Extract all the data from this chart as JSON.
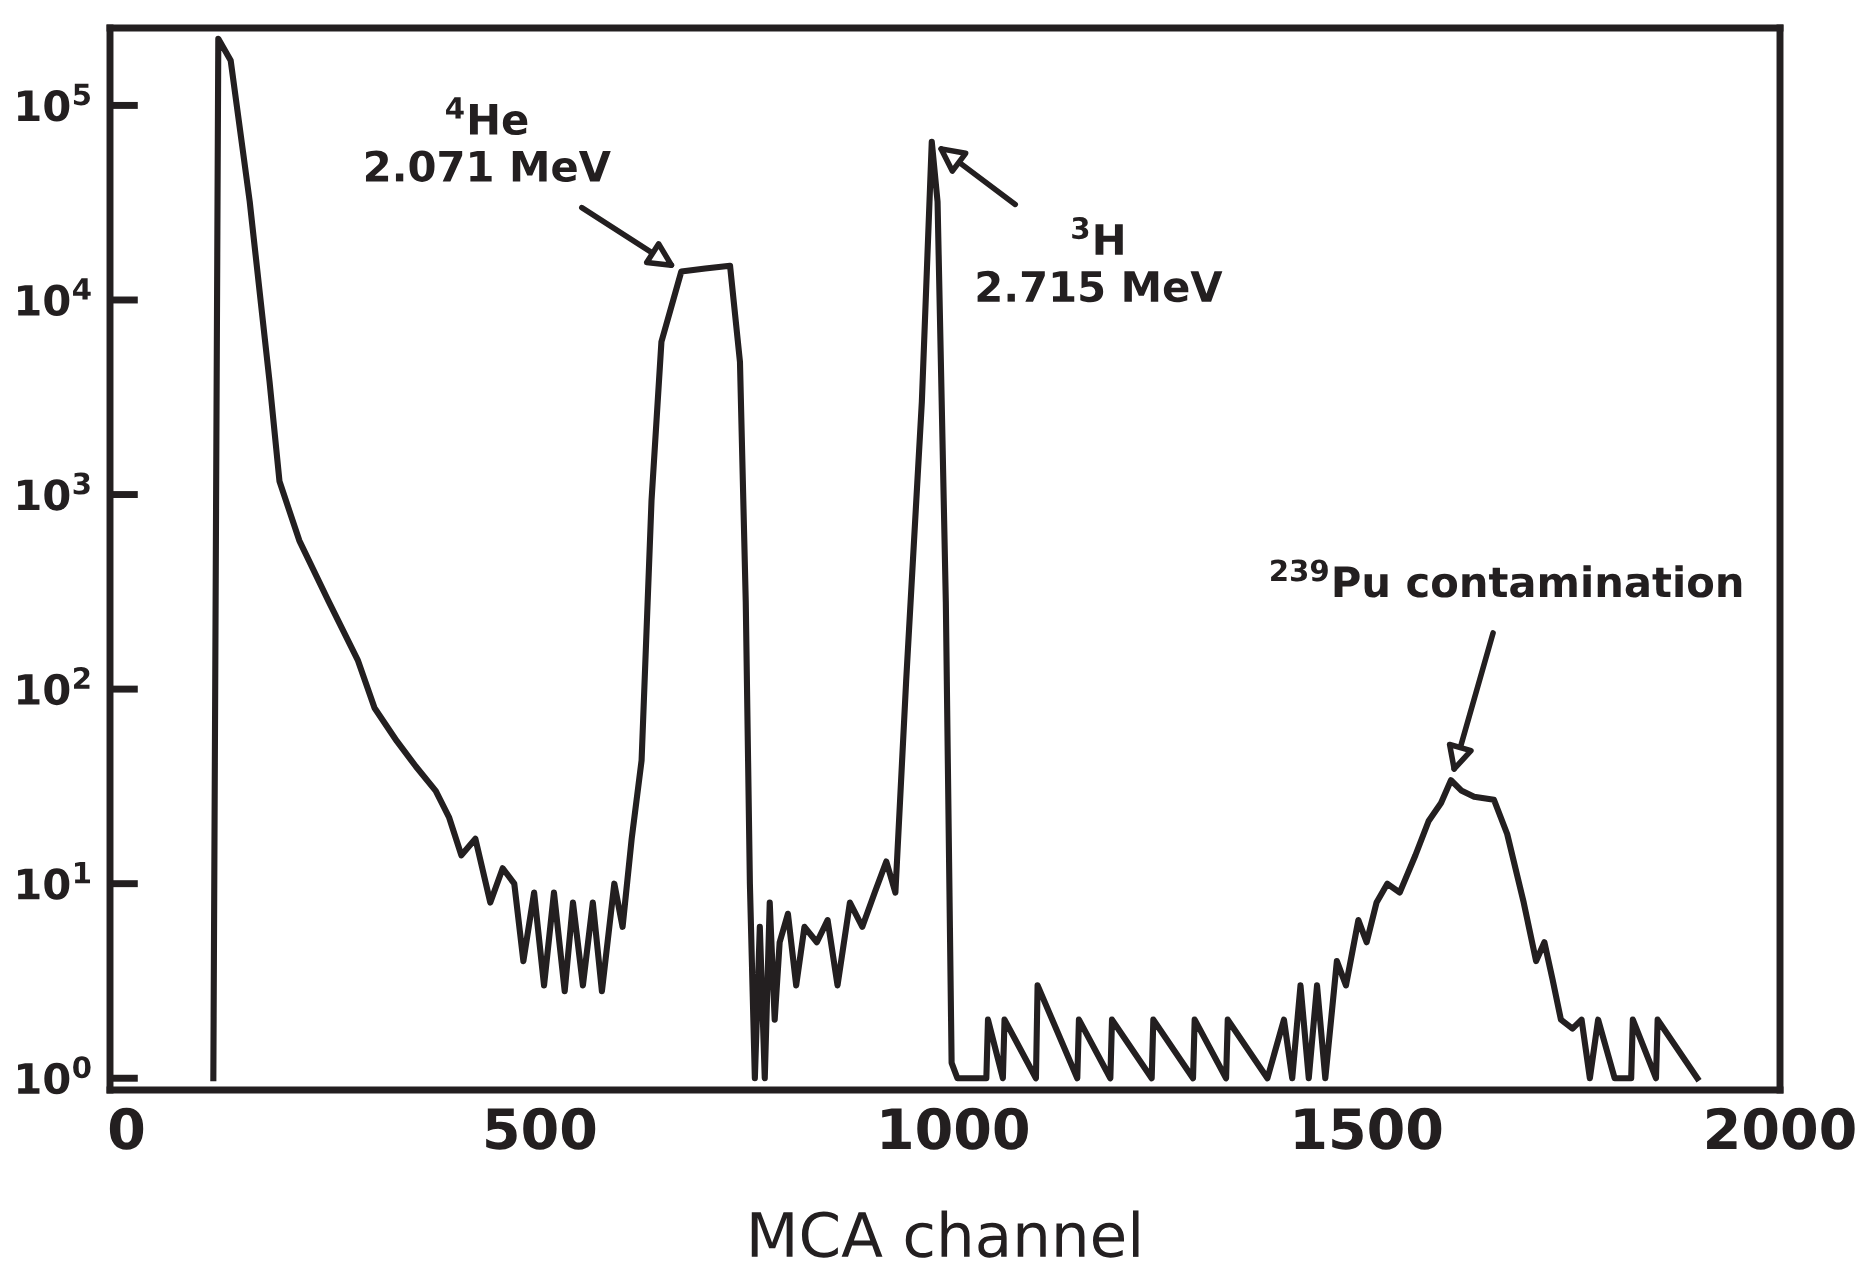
{
  "chart_data": {
    "type": "line",
    "xlabel": "MCA channel",
    "xlim": [
      -20,
      2000
    ],
    "xticks": [
      0,
      500,
      1000,
      1500,
      2000
    ],
    "ylim": [
      0.87,
      250000
    ],
    "log": "y",
    "yticks": [
      {
        "value": 1,
        "label": "10$^{0}$"
      },
      {
        "value": 10,
        "label": "10$^{1}$"
      },
      {
        "value": 100,
        "label": "10$^{2}$"
      },
      {
        "value": 1000,
        "label": "10$^{3}$"
      },
      {
        "value": 10000,
        "label": "10$^{4}$"
      },
      {
        "value": 100000,
        "label": "10$^{5}$"
      }
    ],
    "grid": false,
    "marker": "none",
    "line_style": "solid",
    "series": [
      {
        "color": "#231f20",
        "x": [
          105,
          111,
          126,
          149,
          173,
          185,
          209,
          244,
          280,
          300,
          327,
          350,
          374,
          390,
          405,
          422,
          440,
          455,
          469,
          480,
          493,
          505,
          517,
          530,
          540,
          552,
          564,
          575,
          590,
          600,
          611,
          623,
          635,
          647,
          671,
          700,
          730,
          742,
          749,
          754,
          760,
          766,
          772,
          778,
          784,
          790,
          800,
          810,
          820,
          835,
          848,
          860,
          875,
          890,
          905,
          919,
          930,
          943,
          962,
          974,
          981,
          991,
          998,
          1005,
          1040,
          1042,
          1060,
          1062,
          1100,
          1102,
          1150,
          1152,
          1190,
          1192,
          1240,
          1242,
          1290,
          1292,
          1330,
          1332,
          1380,
          1400,
          1410,
          1420,
          1430,
          1440,
          1450,
          1464,
          1475,
          1490,
          1500,
          1512,
          1525,
          1540,
          1559,
          1575,
          1590,
          1602,
          1615,
          1630,
          1654,
          1670,
          1690,
          1705,
          1715,
          1725,
          1735,
          1749,
          1760,
          1770,
          1780,
          1800,
          1820,
          1822,
          1850,
          1852,
          1900
        ],
        "values": [
          1,
          220000,
          170000,
          32000,
          3800,
          1170,
          580,
          285,
          140,
          80,
          54,
          40,
          30,
          22,
          14,
          17,
          8,
          12,
          10,
          4,
          9,
          3,
          9,
          2.8,
          8,
          3,
          8,
          2.8,
          10,
          6,
          17,
          43,
          930,
          6100,
          14000,
          14500,
          15000,
          4800,
          280,
          10,
          1,
          6,
          1,
          8,
          2,
          5,
          7,
          3,
          6,
          5,
          6.5,
          3,
          8,
          6,
          9,
          13,
          9,
          110,
          3000,
          65000,
          32000,
          280,
          1.2,
          1,
          1,
          2,
          1,
          2,
          1,
          3,
          1,
          2,
          1,
          2,
          1,
          2,
          1,
          2,
          1,
          2,
          1,
          2,
          1,
          3,
          1,
          3,
          1,
          4,
          3,
          6.5,
          5,
          8,
          10,
          9,
          14,
          21,
          26,
          34,
          30,
          28,
          27,
          18,
          8,
          4,
          5,
          3.2,
          2,
          1.8,
          2,
          1,
          2,
          1,
          1,
          2,
          1,
          2,
          1
        ]
      }
    ],
    "annotations": [
      {
        "text": "$^{4}$He\n2.071 MeV",
        "x": 671,
        "y": 14000
      },
      {
        "text": "$^{3}$H\n2.715 MeV",
        "x": 974,
        "y": 65000
      },
      {
        "text": "$^{239}$Pu contamination",
        "x": 1602,
        "y": 34
      }
    ]
  }
}
